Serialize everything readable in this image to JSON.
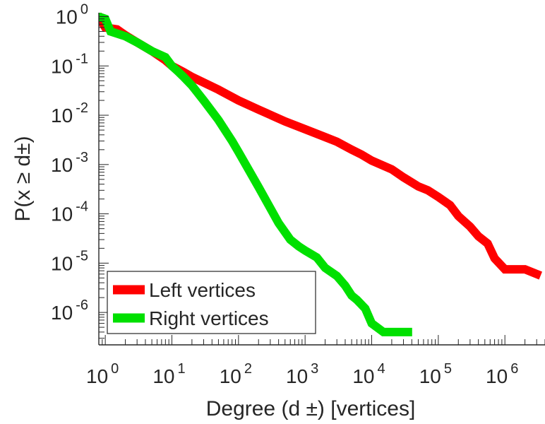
{
  "chart_data": {
    "type": "line",
    "title": "",
    "xlabel": "Degree (d ±) [vertices]",
    "ylabel": "P(x ≥ d±)",
    "xscale": "log",
    "yscale": "log",
    "xlim": [
      0.8,
      4000000
    ],
    "ylim": [
      2.2e-07,
      1.2
    ],
    "grid": false,
    "legend_position": "bottom-left",
    "x_tick_labels": [
      {
        "base": "10",
        "exp": "0",
        "value": 1
      },
      {
        "base": "10",
        "exp": "1",
        "value": 10
      },
      {
        "base": "10",
        "exp": "2",
        "value": 100
      },
      {
        "base": "10",
        "exp": "3",
        "value": 1000
      },
      {
        "base": "10",
        "exp": "4",
        "value": 10000
      },
      {
        "base": "10",
        "exp": "5",
        "value": 100000
      },
      {
        "base": "10",
        "exp": "6",
        "value": 1000000
      }
    ],
    "y_tick_labels": [
      {
        "base": "10",
        "exp": "0",
        "value": 1
      },
      {
        "base": "10",
        "exp": "-1",
        "value": 0.1
      },
      {
        "base": "10",
        "exp": "-2",
        "value": 0.01
      },
      {
        "base": "10",
        "exp": "-3",
        "value": 0.001
      },
      {
        "base": "10",
        "exp": "-4",
        "value": 0.0001
      },
      {
        "base": "10",
        "exp": "-5",
        "value": 1e-05
      },
      {
        "base": "10",
        "exp": "-6",
        "value": 1e-06
      }
    ],
    "series": [
      {
        "name": "Left vertices",
        "color": "#ff0000",
        "x": [
          0.8,
          1,
          1.5,
          2,
          3,
          5,
          8,
          10,
          15,
          20,
          50,
          100,
          200,
          500,
          1000,
          2000,
          3000,
          5000,
          7000,
          10000,
          20000,
          30000,
          50000,
          70000,
          100000,
          150000,
          200000,
          300000,
          400000,
          550000,
          700000,
          1000000,
          2000000,
          3000000
        ],
        "y": [
          1,
          0.6,
          0.55,
          0.42,
          0.3,
          0.2,
          0.13,
          0.1,
          0.075,
          0.06,
          0.033,
          0.02,
          0.013,
          0.0075,
          0.0052,
          0.0036,
          0.0029,
          0.002,
          0.0016,
          0.0012,
          0.0008,
          0.00055,
          0.00036,
          0.0003,
          0.00022,
          0.00015,
          9e-05,
          5.5e-05,
          3.5e-05,
          2.5e-05,
          1.25e-05,
          7.5e-06,
          7.5e-06,
          6e-06
        ]
      },
      {
        "name": "Right vertices",
        "color": "#00e000",
        "x": [
          0.8,
          1,
          1.2,
          2,
          3,
          5,
          8,
          10,
          12,
          15,
          20,
          30,
          50,
          80,
          100,
          200,
          400,
          600,
          800,
          1000,
          1500,
          2000,
          3000,
          4000,
          5000,
          6000,
          8000,
          10000,
          15000,
          20000,
          30000,
          35000
        ],
        "y": [
          1,
          0.9,
          0.5,
          0.4,
          0.3,
          0.2,
          0.15,
          0.1,
          0.08,
          0.06,
          0.04,
          0.02,
          0.008,
          0.003,
          0.0018,
          0.00035,
          6.5e-05,
          3e-05,
          2.2e-05,
          1.8e-05,
          1.3e-05,
          8e-06,
          5.5e-06,
          3.5e-06,
          2.2e-06,
          1.8e-06,
          1.2e-06,
          6e-07,
          4e-07,
          4e-07,
          4e-07,
          4e-07
        ]
      }
    ]
  }
}
